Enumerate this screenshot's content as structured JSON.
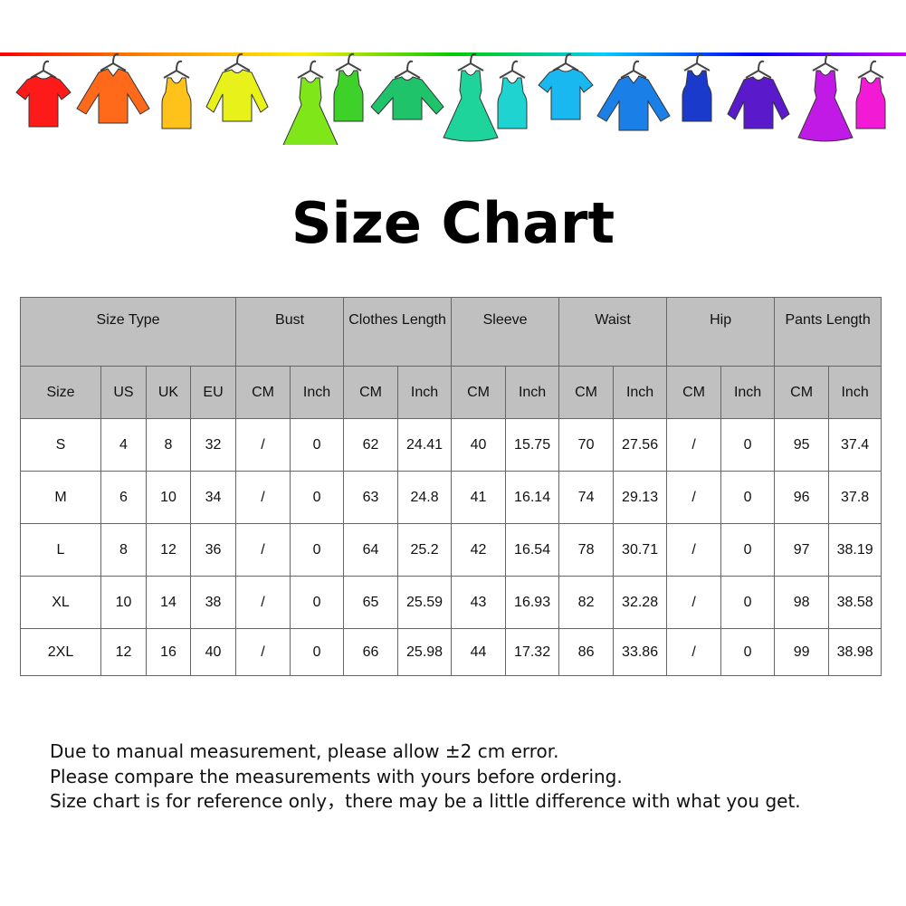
{
  "banner": {
    "line_colors": [
      "#ff0000",
      "#ff8800",
      "#ffee00",
      "#00cc00",
      "#00ccff",
      "#0000ff",
      "#cc00ff"
    ],
    "garments": [
      {
        "icon": "tshirt-icon",
        "color": "#ff1a1a"
      },
      {
        "icon": "shirt-icon",
        "color": "#ff6a1a"
      },
      {
        "icon": "tank-top-icon",
        "color": "#ffc21a"
      },
      {
        "icon": "sweater-icon",
        "color": "#e8f21a"
      },
      {
        "icon": "dress-icon",
        "color": "#7fe61a"
      },
      {
        "icon": "tank-top-icon",
        "color": "#3ed12a"
      },
      {
        "icon": "long-sleeve-icon",
        "color": "#1fc46a"
      },
      {
        "icon": "dress-icon",
        "color": "#1fd49a"
      },
      {
        "icon": "tank-top-icon",
        "color": "#1fd4d0"
      },
      {
        "icon": "tshirt-icon",
        "color": "#1ab8f0"
      },
      {
        "icon": "shirt-icon",
        "color": "#1a7fe6"
      },
      {
        "icon": "tank-top-icon",
        "color": "#1a3acc"
      },
      {
        "icon": "sweater-icon",
        "color": "#5a1acc"
      },
      {
        "icon": "dress-icon",
        "color": "#c21ae6"
      },
      {
        "icon": "tank-top-icon",
        "color": "#f21ad4"
      }
    ]
  },
  "title": "Size Chart",
  "table": {
    "groups": [
      {
        "label": "Size Type",
        "span": 4
      },
      {
        "label": "Bust",
        "span": 2
      },
      {
        "label": "Clothes Length",
        "span": 2
      },
      {
        "label": "Sleeve",
        "span": 2
      },
      {
        "label": "Waist",
        "span": 2
      },
      {
        "label": "Hip",
        "span": 2
      },
      {
        "label": "Pants Length",
        "span": 2
      }
    ],
    "subheaders": [
      "Size",
      "US",
      "UK",
      "EU",
      "CM",
      "Inch",
      "CM",
      "Inch",
      "CM",
      "Inch",
      "CM",
      "Inch",
      "CM",
      "Inch",
      "CM",
      "Inch"
    ],
    "rows": [
      [
        "S",
        "4",
        "8",
        "32",
        "/",
        "0",
        "62",
        "24.41",
        "40",
        "15.75",
        "70",
        "27.56",
        "/",
        "0",
        "95",
        "37.4"
      ],
      [
        "M",
        "6",
        "10",
        "34",
        "/",
        "0",
        "63",
        "24.8",
        "41",
        "16.14",
        "74",
        "29.13",
        "/",
        "0",
        "96",
        "37.8"
      ],
      [
        "L",
        "8",
        "12",
        "36",
        "/",
        "0",
        "64",
        "25.2",
        "42",
        "16.54",
        "78",
        "30.71",
        "/",
        "0",
        "97",
        "38.19"
      ],
      [
        "XL",
        "10",
        "14",
        "38",
        "/",
        "0",
        "65",
        "25.59",
        "43",
        "16.93",
        "82",
        "32.28",
        "/",
        "0",
        "98",
        "38.58"
      ],
      [
        "2XL",
        "12",
        "16",
        "40",
        "/",
        "0",
        "66",
        "25.98",
        "44",
        "17.32",
        "86",
        "33.86",
        "/",
        "0",
        "99",
        "38.98"
      ]
    ]
  },
  "notes": [
    "Due to manual measurement, please allow ±2 cm error.",
    "Please compare the measurements with yours before ordering.",
    "Size chart is for reference only，there may be a little difference with what you get."
  ]
}
